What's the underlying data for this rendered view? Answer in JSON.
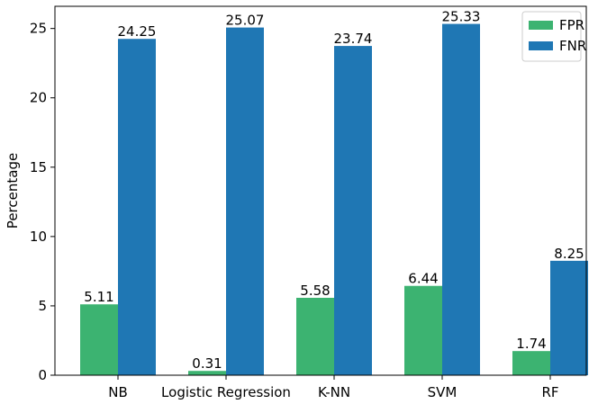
{
  "chart_data": {
    "type": "bar",
    "categories": [
      "NB",
      "Logistic Regression",
      "K-NN",
      "SVM",
      "RF"
    ],
    "series": [
      {
        "name": "FPR",
        "values": [
          5.11,
          0.31,
          5.58,
          6.44,
          1.74
        ],
        "labels": [
          "5.11",
          "0.31",
          "5.58",
          "6.44",
          "1.74"
        ],
        "color": "#3cb371"
      },
      {
        "name": "FNR",
        "values": [
          24.25,
          25.07,
          23.74,
          25.33,
          8.25
        ],
        "labels": [
          "24.25",
          "25.07",
          "23.74",
          "25.33",
          "8.25"
        ],
        "color": "#1f77b4"
      }
    ],
    "xlabel": "",
    "ylabel": "Percentage",
    "ylim": [
      0,
      26.6
    ],
    "yticks": [
      0,
      5,
      10,
      15,
      20,
      25
    ],
    "grid": false,
    "legend": "top-right"
  }
}
